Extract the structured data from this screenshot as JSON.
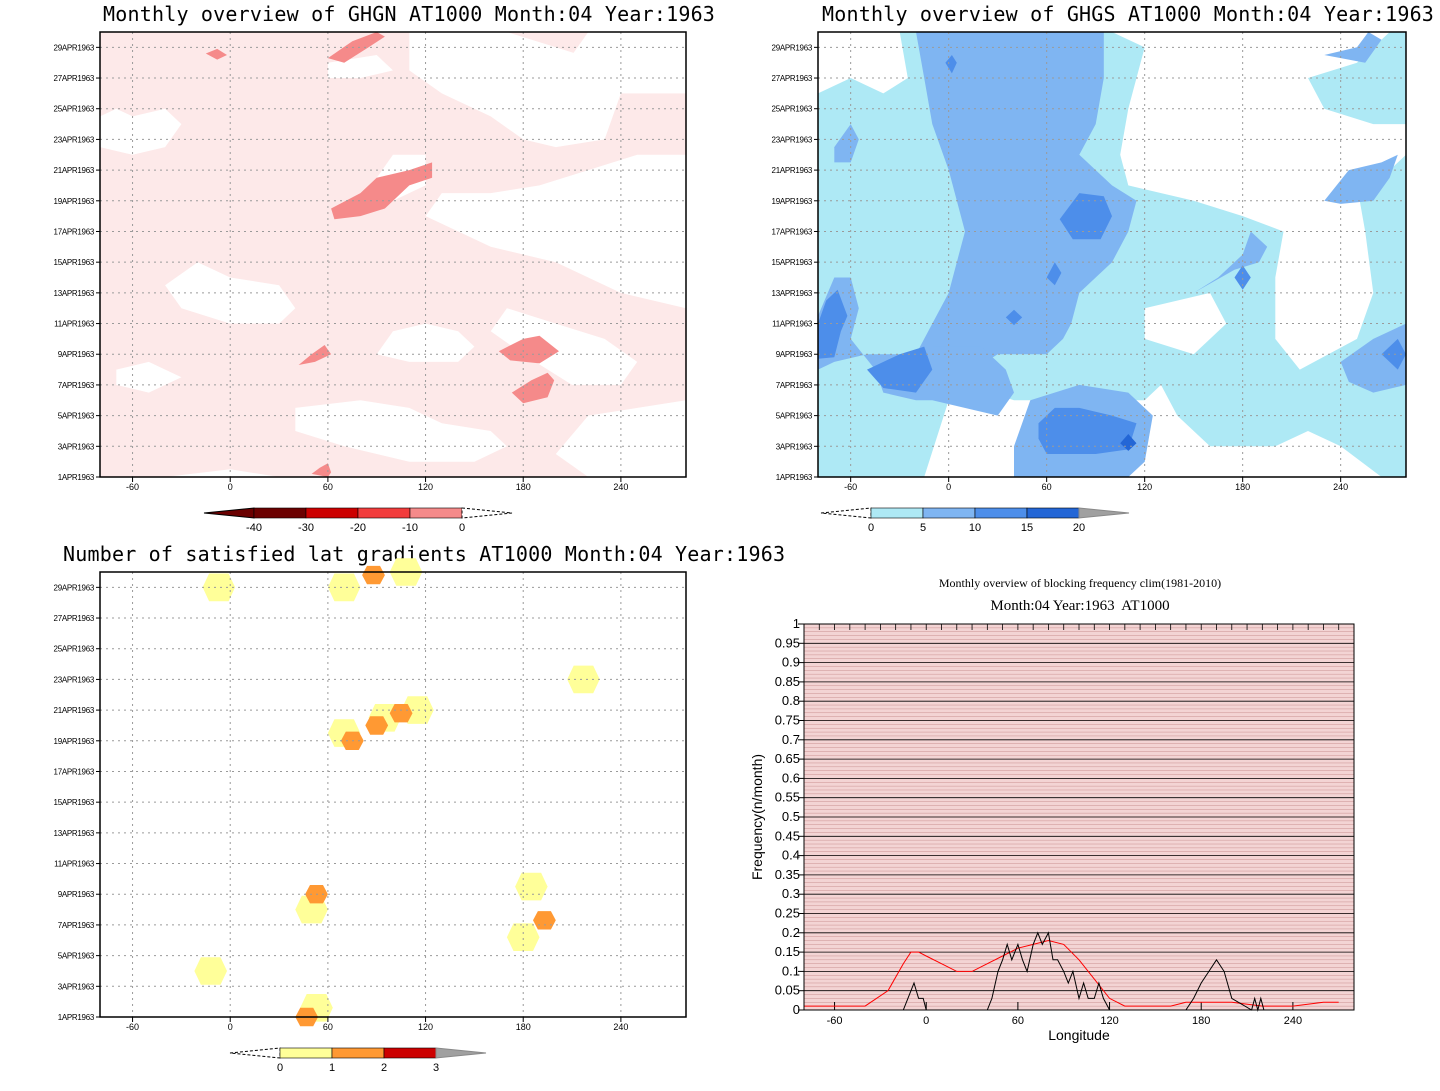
{
  "colors": {
    "ghgn": [
      "#6b0000",
      "#cc0000",
      "#f23c3c",
      "#f58a8a",
      "#fbd0d0",
      "#fde9e9"
    ],
    "ghgs": [
      "#ffffff",
      "#aee9f5",
      "#7fb5f2",
      "#4d8eea",
      "#2366d6",
      "#a0a0a0"
    ],
    "lat": [
      "#ffff99",
      "#ffff99",
      "#ff9933",
      "#cc0000",
      "#a0a0a0"
    ],
    "freq_clim": "#ff0000",
    "freq_year": "#000000",
    "freq_bg": "#f3d4d4",
    "freq_grid": "#c08080"
  },
  "chart_data": [
    {
      "type": "heatmap",
      "title": "Monthly overview of GHGN AT1000 Month:04 Year:1963",
      "xlabel": "",
      "ylabel": "",
      "x_ticks": [
        "-60",
        "0",
        "60",
        "120",
        "180",
        "240"
      ],
      "x_tick_values": [
        -60,
        0,
        60,
        120,
        180,
        240
      ],
      "xlim": [
        -80,
        280
      ],
      "y_ticks": [
        "29APR1963",
        "27APR1963",
        "25APR1963",
        "23APR1963",
        "21APR1963",
        "19APR1963",
        "17APR1963",
        "15APR1963",
        "13APR1963",
        "11APR1963",
        "9APR1963",
        "7APR1963",
        "5APR1963",
        "3APR1963",
        "1APR1963"
      ],
      "y_tick_values": [
        29,
        27,
        25,
        23,
        21,
        19,
        17,
        15,
        13,
        11,
        9,
        7,
        5,
        3,
        1
      ],
      "ylim": [
        1,
        30
      ],
      "colorbar": [
        "-40",
        "-30",
        "-20",
        "-10",
        "0"
      ]
    },
    {
      "type": "heatmap",
      "title": "Monthly overview of GHGS AT1000 Month:04 Year:1963",
      "xlabel": "",
      "ylabel": "",
      "x_ticks": [
        "-60",
        "0",
        "60",
        "120",
        "180",
        "240"
      ],
      "x_tick_values": [
        -60,
        0,
        60,
        120,
        180,
        240
      ],
      "xlim": [
        -80,
        280
      ],
      "y_ticks": [
        "29APR1963",
        "27APR1963",
        "25APR1963",
        "23APR1963",
        "21APR1963",
        "19APR1963",
        "17APR1963",
        "15APR1963",
        "13APR1963",
        "11APR1963",
        "9APR1963",
        "7APR1963",
        "5APR1963",
        "3APR1963",
        "1APR1963"
      ],
      "y_tick_values": [
        29,
        27,
        25,
        23,
        21,
        19,
        17,
        15,
        13,
        11,
        9,
        7,
        5,
        3,
        1
      ],
      "ylim": [
        1,
        30
      ],
      "colorbar": [
        "0",
        "5",
        "10",
        "15",
        "20"
      ]
    },
    {
      "type": "heatmap",
      "title": "Number of satisfied lat gradients AT1000 Month:04 Year:1963",
      "xlabel": "",
      "ylabel": "",
      "x_ticks": [
        "-60",
        "0",
        "60",
        "120",
        "180",
        "240"
      ],
      "x_tick_values": [
        -60,
        0,
        60,
        120,
        180,
        240
      ],
      "xlim": [
        -80,
        280
      ],
      "y_ticks": [
        "29APR1963",
        "27APR1963",
        "25APR1963",
        "23APR1963",
        "21APR1963",
        "19APR1963",
        "17APR1963",
        "15APR1963",
        "13APR1963",
        "11APR1963",
        "9APR1963",
        "7APR1963",
        "5APR1963",
        "3APR1963",
        "1APR1963"
      ],
      "y_tick_values": [
        29,
        27,
        25,
        23,
        21,
        19,
        17,
        15,
        13,
        11,
        9,
        7,
        5,
        3,
        1
      ],
      "ylim": [
        1,
        30
      ],
      "colorbar": [
        "0",
        "1",
        "2",
        "3"
      ],
      "cells": [
        {
          "lon": -7,
          "day": 29,
          "level": 1
        },
        {
          "lon": 70,
          "day": 29,
          "level": 1
        },
        {
          "lon": 88,
          "day": 29.8,
          "level": 2
        },
        {
          "lon": 108,
          "day": 30,
          "level": 1
        },
        {
          "lon": 217,
          "day": 23,
          "level": 1
        },
        {
          "lon": 70,
          "day": 19.5,
          "level": 1
        },
        {
          "lon": 95,
          "day": 20.5,
          "level": 1
        },
        {
          "lon": 115,
          "day": 21,
          "level": 1
        },
        {
          "lon": 75,
          "day": 19,
          "level": 2
        },
        {
          "lon": 90,
          "day": 20,
          "level": 2
        },
        {
          "lon": 105,
          "day": 20.8,
          "level": 2
        },
        {
          "lon": 50,
          "day": 8,
          "level": 1
        },
        {
          "lon": 53,
          "day": 9,
          "level": 2
        },
        {
          "lon": 185,
          "day": 9.5,
          "level": 1
        },
        {
          "lon": 180,
          "day": 6.2,
          "level": 1
        },
        {
          "lon": 193,
          "day": 7.3,
          "level": 2
        },
        {
          "lon": -12,
          "day": 4,
          "level": 1
        },
        {
          "lon": 53,
          "day": 1.6,
          "level": 1
        },
        {
          "lon": 47,
          "day": 1,
          "level": 2
        }
      ]
    },
    {
      "type": "line",
      "title": "Monthly overview of blocking frequency clim(1981-2010)",
      "subtitle": "Month:04 Year:1963  AT1000",
      "xlabel": "Longitude",
      "ylabel": "Frequency(n/month)",
      "x_ticks": [
        "-60",
        "0",
        "60",
        "120",
        "180",
        "240"
      ],
      "x_tick_values": [
        -60,
        0,
        60,
        120,
        180,
        240
      ],
      "xlim": [
        -80,
        280
      ],
      "y_ticks": [
        "0",
        "0.05",
        "0.1",
        "0.15",
        "0.2",
        "0.25",
        "0.3",
        "0.35",
        "0.4",
        "0.45",
        "0.5",
        "0.55",
        "0.6",
        "0.65",
        "0.7",
        "0.75",
        "0.8",
        "0.85",
        "0.9",
        "0.95",
        "1"
      ],
      "ylim": [
        0,
        1
      ],
      "series": [
        {
          "x": [
            -80,
            -60,
            -40,
            -25,
            -15,
            -10,
            -5,
            0,
            10,
            20,
            30,
            40,
            50,
            60,
            70,
            80,
            90,
            100,
            110,
            120,
            130,
            140,
            150,
            160,
            170,
            180,
            190,
            200,
            220,
            240,
            260,
            270
          ],
          "values": [
            0.01,
            0.01,
            0.01,
            0.05,
            0.12,
            0.15,
            0.15,
            0.14,
            0.12,
            0.1,
            0.1,
            0.12,
            0.14,
            0.16,
            0.17,
            0.18,
            0.17,
            0.13,
            0.08,
            0.03,
            0.01,
            0.01,
            0.01,
            0.01,
            0.02,
            0.02,
            0.02,
            0.02,
            0.01,
            0.01,
            0.02,
            0.02
          ]
        },
        {
          "x": [
            -80,
            -15,
            -12,
            -8,
            -5,
            -2,
            0,
            40,
            43,
            47,
            50,
            53,
            56,
            60,
            63,
            66,
            70,
            73,
            76,
            80,
            83,
            86,
            90,
            93,
            96,
            100,
            103,
            106,
            110,
            113,
            116,
            120,
            170,
            175,
            180,
            185,
            190,
            195,
            200,
            213,
            215,
            217,
            219,
            221,
            223,
            280
          ],
          "values": [
            0,
            0,
            0.03,
            0.07,
            0.03,
            0.03,
            0,
            0,
            0.03,
            0.1,
            0.13,
            0.17,
            0.13,
            0.17,
            0.13,
            0.1,
            0.17,
            0.2,
            0.17,
            0.2,
            0.13,
            0.13,
            0.1,
            0.07,
            0.1,
            0.03,
            0.07,
            0.03,
            0.03,
            0.07,
            0.03,
            0,
            0,
            0.03,
            0.07,
            0.1,
            0.13,
            0.1,
            0.03,
            0,
            0.03,
            0,
            0.03,
            0,
            0,
            0
          ]
        }
      ]
    }
  ]
}
